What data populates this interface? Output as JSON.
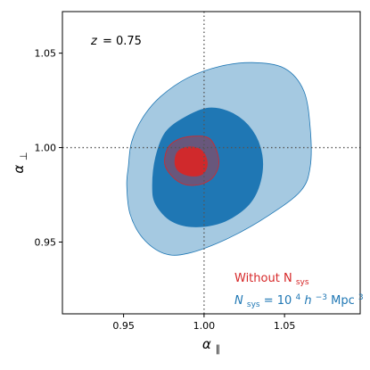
{
  "chart_data": {
    "type": "contour",
    "xlim": [
      0.912,
      1.097
    ],
    "ylim": [
      0.912,
      1.072
    ],
    "xlabel_symbol": "α",
    "xlabel_sub": "∥",
    "ylabel_symbol": "α",
    "ylabel_sub": "⊥",
    "xticks": [
      0.95,
      1.0,
      1.05
    ],
    "xtick_labels": [
      "0.95",
      "1.00",
      "1.05"
    ],
    "yticks": [
      0.95,
      1.0,
      1.05
    ],
    "ytick_labels": [
      "0.95",
      "1.00",
      "1.05"
    ],
    "reference_lines": {
      "x": 1.0,
      "y": 1.0
    },
    "annotation": {
      "var": "z",
      "value": "= 0.75"
    },
    "series": [
      {
        "legend_main": "N",
        "legend_sub": "sys",
        "legend_rest": " = 10",
        "legend_exp1": "4",
        "legend_h": " h",
        "legend_exp2": "−3",
        "legend_unit": "Mpc",
        "legend_exp3": "3",
        "color": "#1f77b4",
        "contour_2sigma": [
          [
            0.952,
            0.98
          ],
          [
            0.953,
            0.99
          ],
          [
            0.955,
            1.003
          ],
          [
            0.962,
            1.016
          ],
          [
            0.973,
            1.027
          ],
          [
            0.99,
            1.037
          ],
          [
            1.01,
            1.043
          ],
          [
            1.03,
            1.045
          ],
          [
            1.05,
            1.042
          ],
          [
            1.062,
            1.03
          ],
          [
            1.066,
            1.01
          ],
          [
            1.066,
            0.99
          ],
          [
            1.06,
            0.977
          ],
          [
            1.04,
            0.964
          ],
          [
            1.015,
            0.952
          ],
          [
            0.99,
            0.944
          ],
          [
            0.975,
            0.944
          ],
          [
            0.962,
            0.952
          ],
          [
            0.954,
            0.965
          ]
        ],
        "contour_1sigma": [
          [
            0.968,
            0.98
          ],
          [
            0.97,
            0.995
          ],
          [
            0.976,
            1.008
          ],
          [
            0.988,
            1.016
          ],
          [
            1.003,
            1.021
          ],
          [
            1.018,
            1.018
          ],
          [
            1.03,
            1.009
          ],
          [
            1.036,
            0.996
          ],
          [
            1.035,
            0.982
          ],
          [
            1.028,
            0.97
          ],
          [
            1.013,
            0.961
          ],
          [
            0.995,
            0.958
          ],
          [
            0.98,
            0.961
          ],
          [
            0.97,
            0.97
          ]
        ]
      },
      {
        "legend_main": "Without N",
        "legend_sub": "sys",
        "color": "#d62728",
        "contour_2sigma": [
          [
            0.976,
            0.99
          ],
          [
            0.977,
            0.999
          ],
          [
            0.983,
            1.004
          ],
          [
            0.993,
            1.006
          ],
          [
            1.003,
            1.005
          ],
          [
            1.008,
            0.998
          ],
          [
            1.009,
            0.99
          ],
          [
            1.004,
            0.983
          ],
          [
            0.994,
            0.98
          ],
          [
            0.984,
            0.982
          ]
        ],
        "contour_1sigma": [
          [
            0.982,
            0.991
          ],
          [
            0.983,
            0.997
          ],
          [
            0.988,
            1.0
          ],
          [
            0.995,
            1.0
          ],
          [
            1.0,
            0.997
          ],
          [
            1.002,
            0.991
          ],
          [
            0.999,
            0.986
          ],
          [
            0.992,
            0.985
          ],
          [
            0.985,
            0.987
          ]
        ]
      }
    ]
  }
}
